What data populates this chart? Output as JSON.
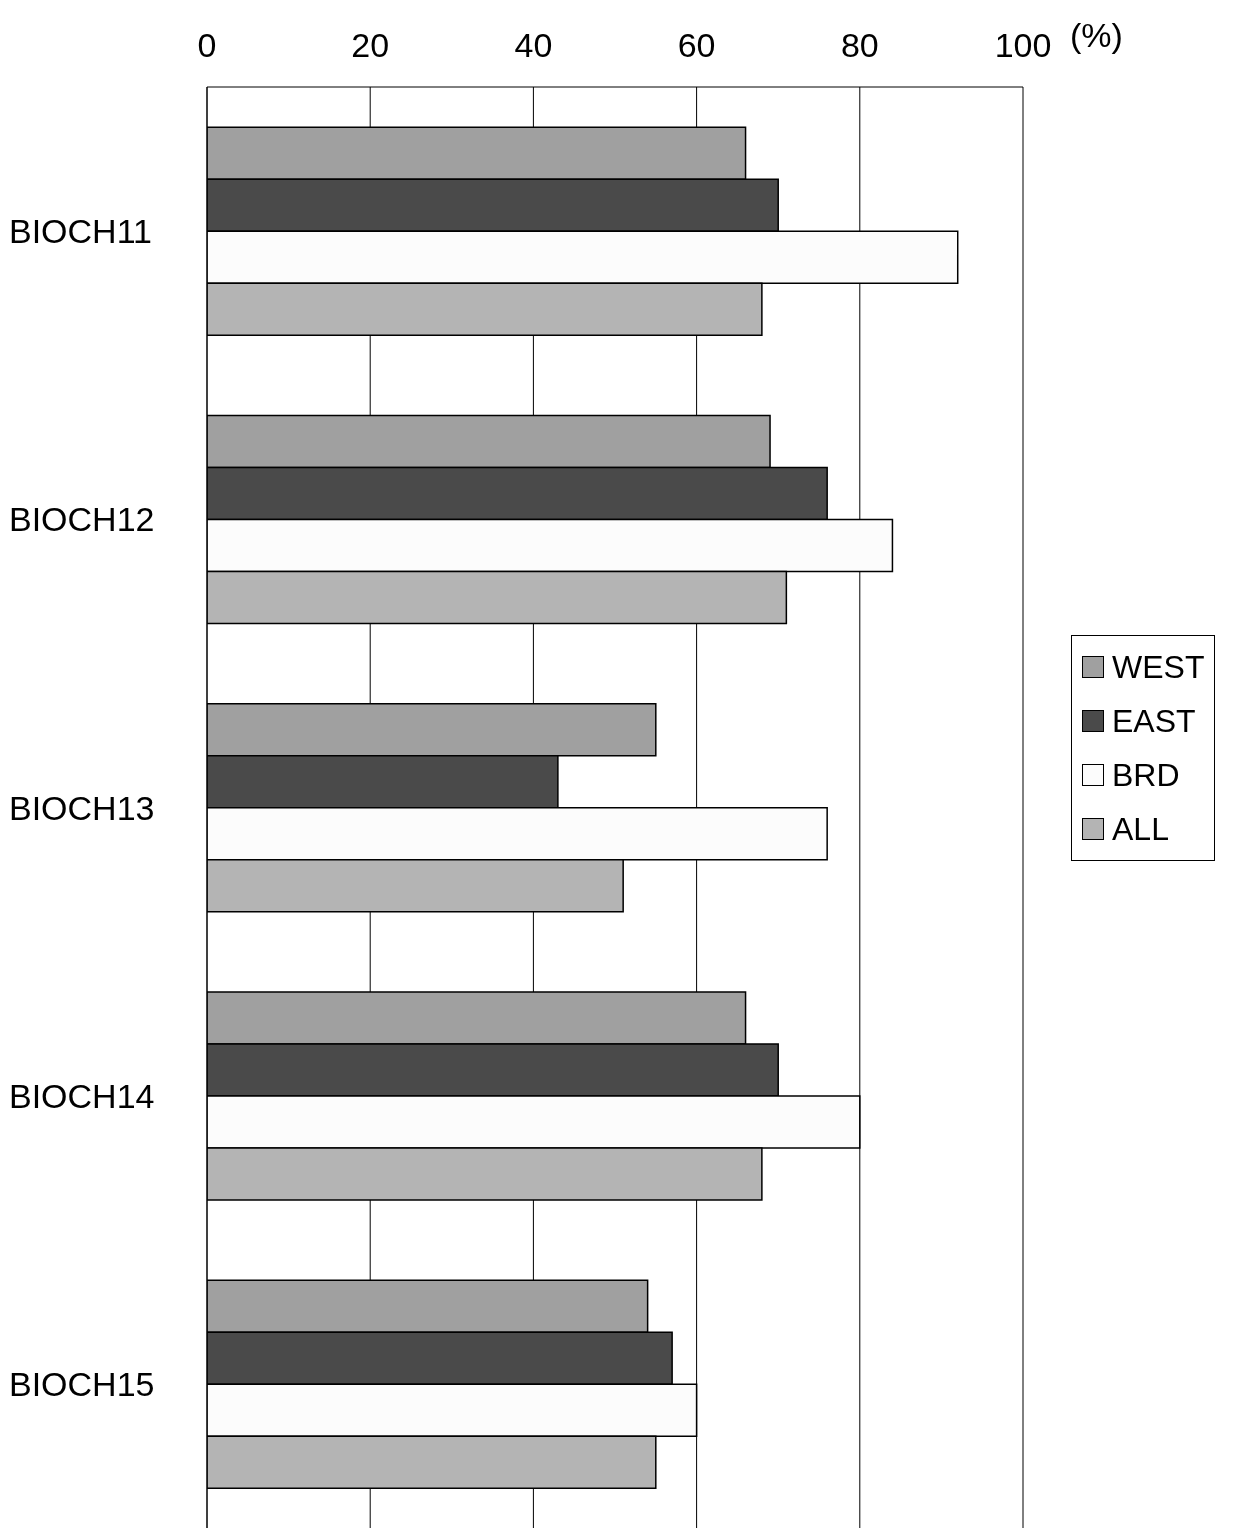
{
  "chart_data": {
    "type": "bar",
    "orientation": "horizontal",
    "xlabel": "(%)",
    "categories": [
      "BIOCH11",
      "BIOCH12",
      "BIOCH13",
      "BIOCH14",
      "BIOCH15"
    ],
    "series": [
      {
        "name": "WEST",
        "color": "#a0a0a0",
        "values": [
          66,
          69,
          55,
          66,
          54
        ]
      },
      {
        "name": "EAST",
        "color": "#4a4a4a",
        "values": [
          70,
          76,
          43,
          70,
          57
        ]
      },
      {
        "name": "BRD",
        "color": "#fcfcfc",
        "values": [
          92,
          84,
          76,
          80,
          60
        ]
      },
      {
        "name": "ALL",
        "color": "#b4b4b4",
        "values": [
          68,
          71,
          51,
          68,
          55
        ]
      }
    ],
    "xlim": [
      0,
      100
    ],
    "xticks": [
      0,
      20,
      40,
      60,
      80,
      100
    ],
    "grid": "x",
    "legend": "right"
  }
}
